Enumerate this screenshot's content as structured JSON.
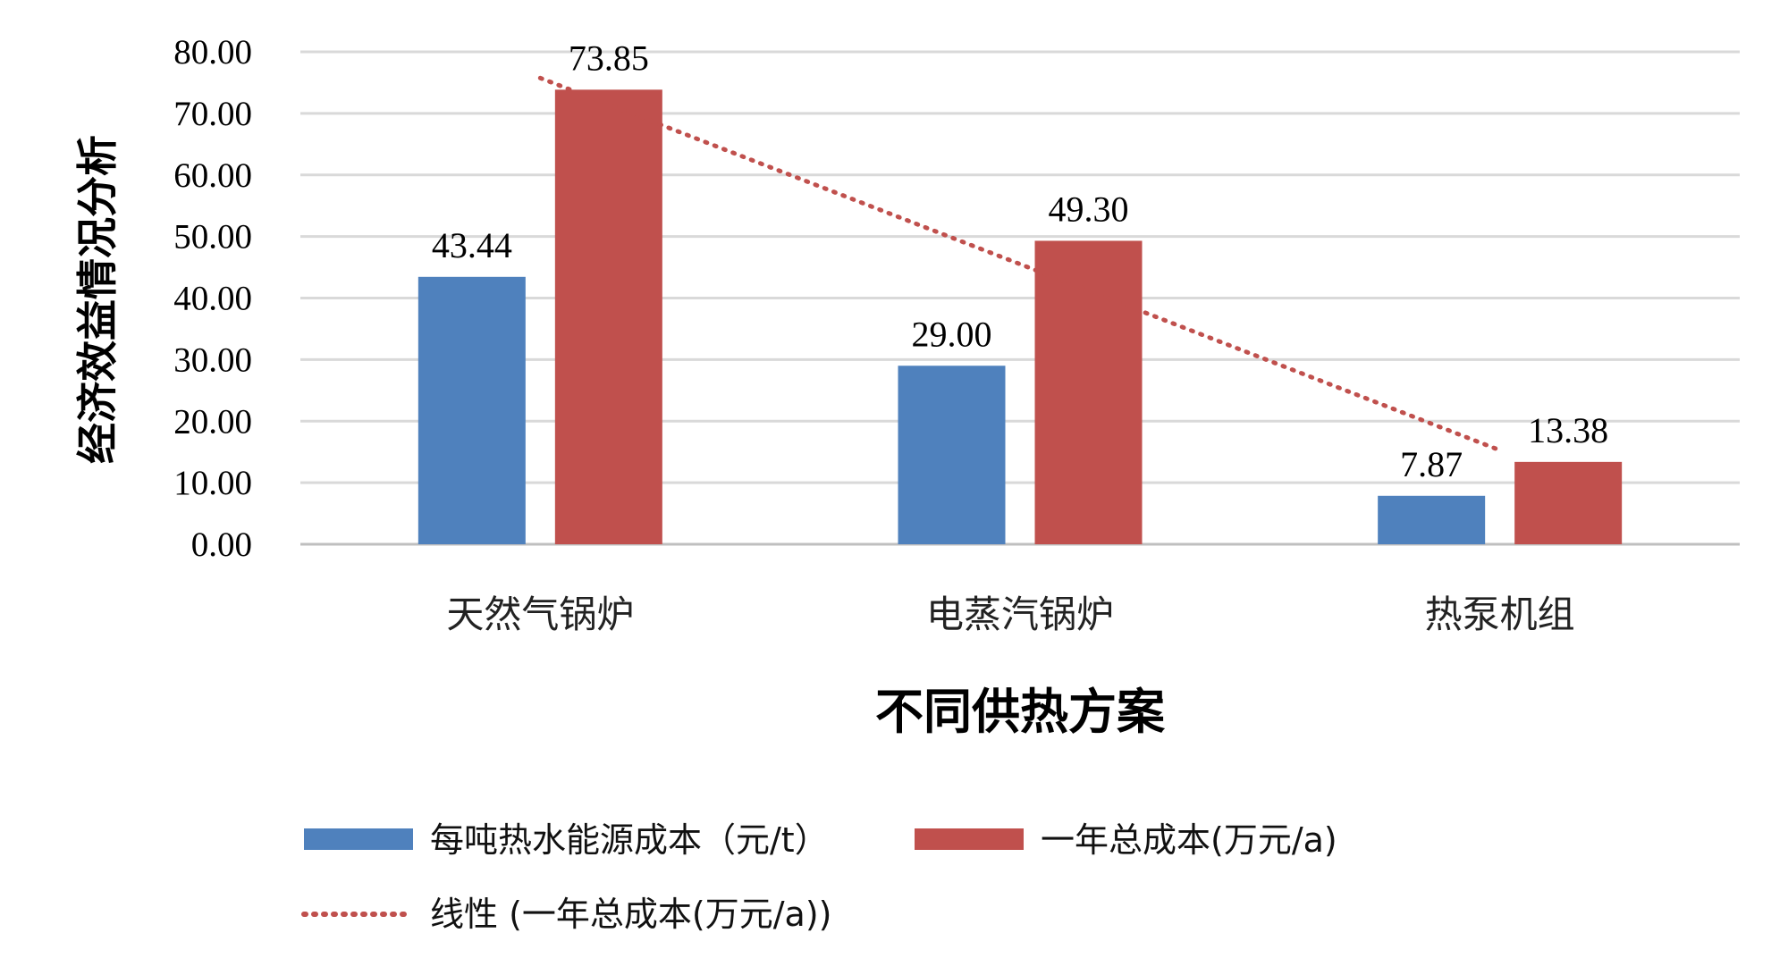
{
  "chart_data": {
    "type": "bar",
    "title": "",
    "xlabel": "不同供热方案",
    "ylabel": "经济效益情况分析",
    "categories": [
      "天然气锅炉",
      "电蒸汽锅炉",
      "热泵机组"
    ],
    "series": [
      {
        "name": "每吨热水能源成本（元/t）",
        "values": [
          43.44,
          29.0,
          7.87
        ],
        "labels": [
          "43.44",
          "29.00",
          "7.87"
        ],
        "color": "#4F81BD"
      },
      {
        "name": "一年总成本(万元/a)",
        "values": [
          73.85,
          49.3,
          13.38
        ],
        "labels": [
          "73.85",
          "49.30",
          "13.38"
        ],
        "color": "#C0504D"
      }
    ],
    "trendline": {
      "name": "线性 (一年总成本(万元/a))",
      "type": "linear",
      "of_series": "一年总成本(万元/a)",
      "color": "#C0504D",
      "style": "dotted"
    },
    "ylim": [
      0,
      80
    ],
    "yticks": [
      "0.00",
      "10.00",
      "20.00",
      "30.00",
      "40.00",
      "50.00",
      "60.00",
      "70.00",
      "80.00"
    ],
    "grid": true,
    "legend_position": "bottom"
  }
}
